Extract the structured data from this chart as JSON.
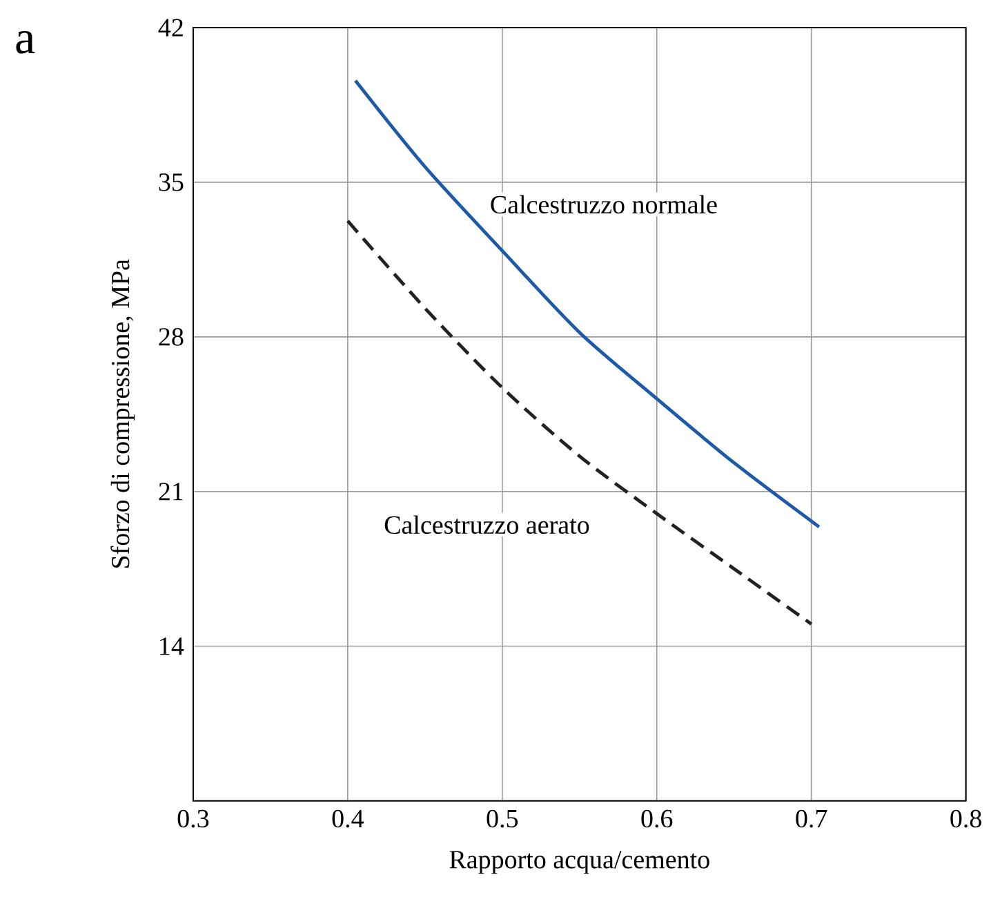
{
  "chart_data": {
    "type": "line",
    "xlabel": "Rapporto acqua/cemento",
    "ylabel": "Sforzo di compressione, MPa",
    "xlim": [
      0.3,
      0.8
    ],
    "xticks": [
      0.3,
      0.4,
      0.5,
      0.6,
      0.7,
      0.8
    ],
    "ylim": [
      7,
      42
    ],
    "yticks": [
      14,
      21,
      28,
      35,
      42
    ],
    "grid": true,
    "legend": false,
    "series": [
      {
        "name": "Calcestruzzo normale",
        "color": "#1f5aa6",
        "line_style": "solid",
        "x": [
          0.405,
          0.45,
          0.5,
          0.55,
          0.6,
          0.65,
          0.705
        ],
        "values": [
          39.6,
          35.7,
          31.9,
          28.2,
          25.2,
          22.3,
          19.4
        ]
      },
      {
        "name": "Calcestruzzo aerato",
        "color": "#222222",
        "line_style": "dashed",
        "x": [
          0.4,
          0.45,
          0.5,
          0.55,
          0.6,
          0.65,
          0.7
        ],
        "values": [
          33.25,
          29.3,
          25.7,
          22.6,
          20.0,
          17.5,
          15.0
        ]
      }
    ],
    "annotations": [
      "a"
    ]
  }
}
